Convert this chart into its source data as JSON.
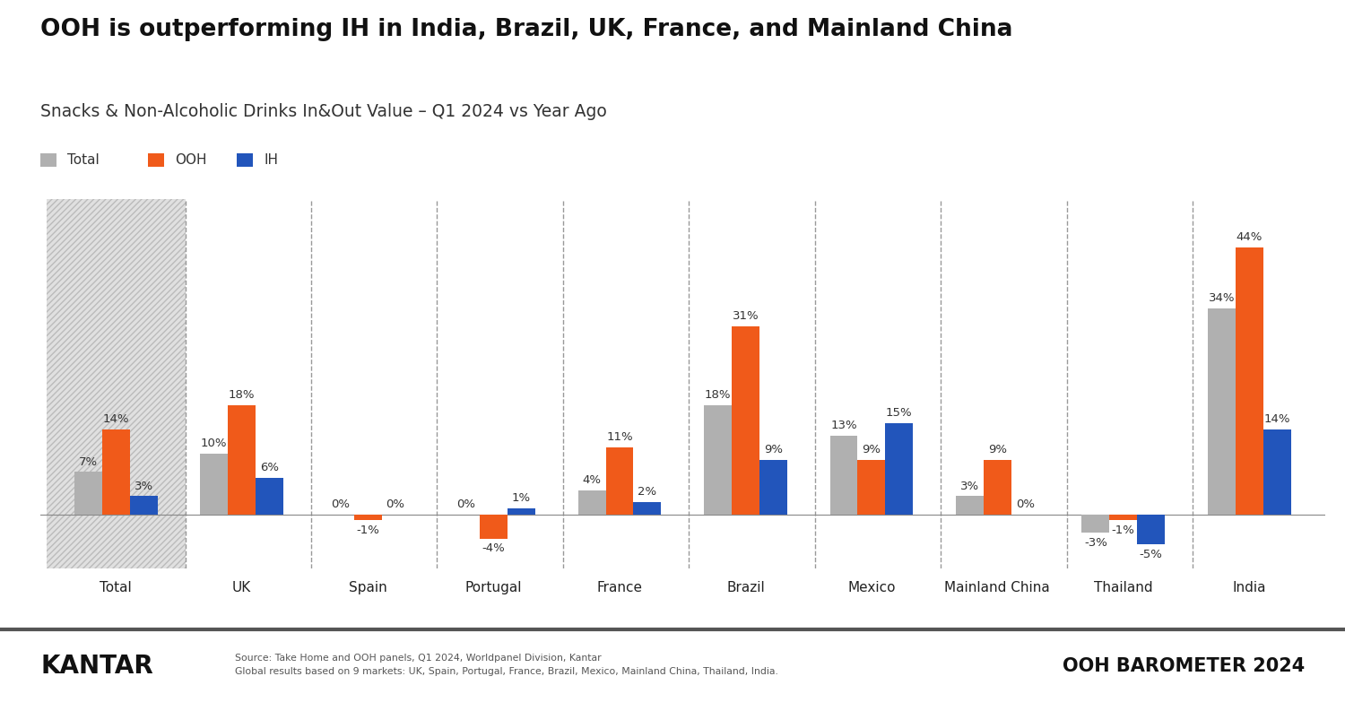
{
  "title": "OOH is outperforming IH in India, Brazil, UK, France, and Mainland China",
  "subtitle": "Snacks & Non-Alcoholic Drinks In&Out Value – Q1 2024 vs Year Ago",
  "categories": [
    "Total",
    "UK",
    "Spain",
    "Portugal",
    "France",
    "Brazil",
    "Mexico",
    "Mainland China",
    "Thailand",
    "India"
  ],
  "total_values": [
    7,
    10,
    0,
    0,
    4,
    18,
    13,
    3,
    -3,
    34
  ],
  "ooh_values": [
    14,
    18,
    -1,
    -4,
    11,
    31,
    9,
    9,
    -1,
    44
  ],
  "ih_values": [
    3,
    6,
    0,
    1,
    2,
    9,
    15,
    0,
    -5,
    14
  ],
  "total_color": "#b0b0b0",
  "ooh_color": "#f05a1a",
  "ih_color": "#2255bb",
  "background_color": "#ffffff",
  "bar_width": 0.22,
  "first_group_bg": "#dddddd",
  "ylim": [
    -9,
    52
  ],
  "source_text": "Source: Take Home and OOH panels, Q1 2024, Worldpanel Division, Kantar\nGlobal results based on 9 markets: UK, Spain, Portugal, France, Brazil, Mexico, Mainland China, Thailand, India.",
  "footer_logo_text": "OOH BAROMETER 2024",
  "kantar_text": "KANTAR",
  "legend_labels": [
    "Total",
    "OOH",
    "IH"
  ]
}
